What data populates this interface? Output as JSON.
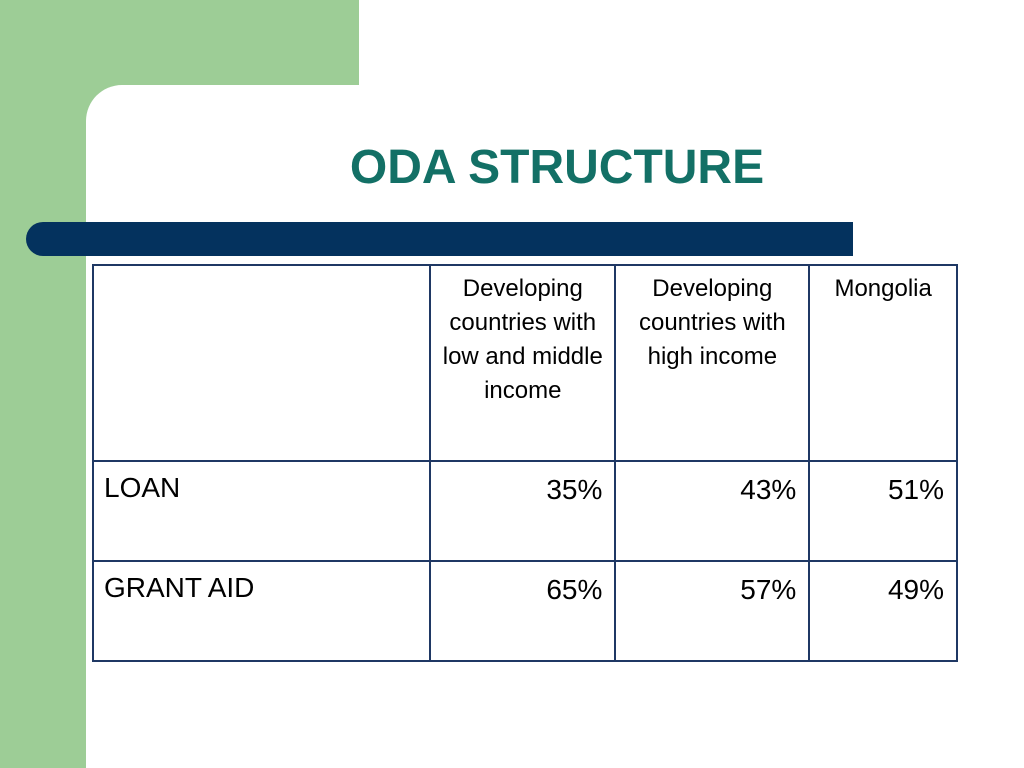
{
  "slide": {
    "title": "ODA STRUCTURE"
  },
  "table": {
    "headers": [
      "",
      "Developing countries with low and middle income",
      "Developing countries with high income",
      "Mongolia"
    ],
    "rows": [
      {
        "label": "LOAN",
        "values": [
          "35%",
          "43%",
          "51%"
        ]
      },
      {
        "label": "GRANT AID",
        "values": [
          "65%",
          "57%",
          "49%"
        ]
      }
    ]
  },
  "colors": {
    "title": "#137066",
    "accent_bar": "#04325e",
    "decor_green": "#9dcd96",
    "table_border": "#1f3864"
  }
}
